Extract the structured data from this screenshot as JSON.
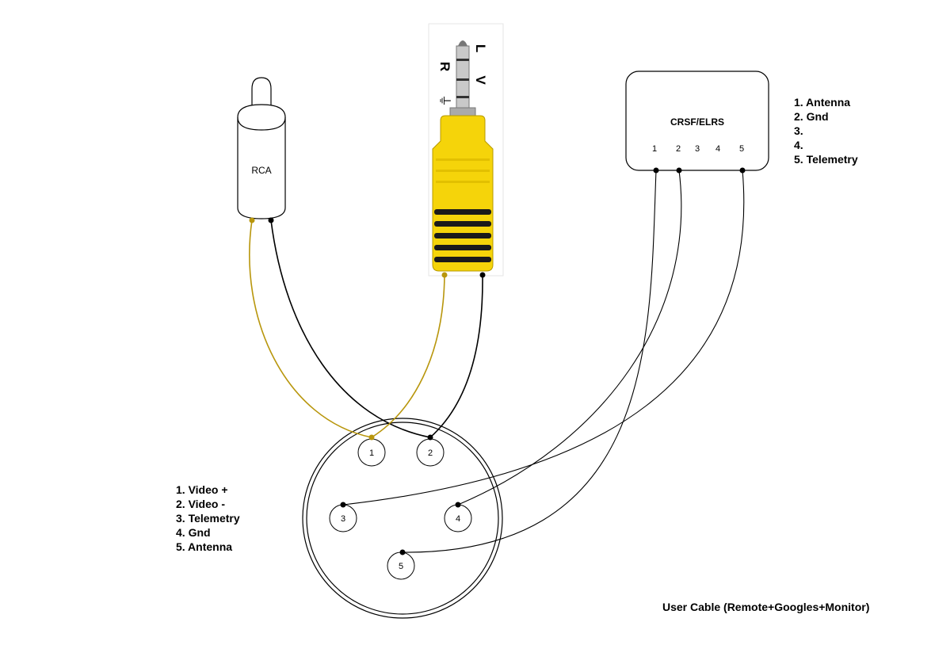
{
  "rca_label": "RCA",
  "jack_labels": {
    "l": "L",
    "v": "V",
    "r": "R",
    "ground_symbol": "⏚"
  },
  "module": {
    "title": "CRSF/ELRS",
    "pins": [
      "1",
      "2",
      "3",
      "4",
      "5"
    ]
  },
  "module_legend": [
    "1. Antenna",
    "2. Gnd",
    "3.",
    "4.",
    "5. Telemetry"
  ],
  "connector": {
    "pins": [
      "1",
      "2",
      "3",
      "4",
      "5"
    ]
  },
  "connector_legend": [
    "1. Video +",
    "2. Video -",
    "3. Telemetry",
    "4. Gnd",
    "5. Antenna"
  ],
  "caption": "User Cable (Remote+Googles+Monitor)",
  "colors": {
    "video_wire": "#b8960c",
    "ground_wire": "#000000",
    "jack_body": "#f5d40a",
    "jack_stripe": "#1a1a1a"
  }
}
